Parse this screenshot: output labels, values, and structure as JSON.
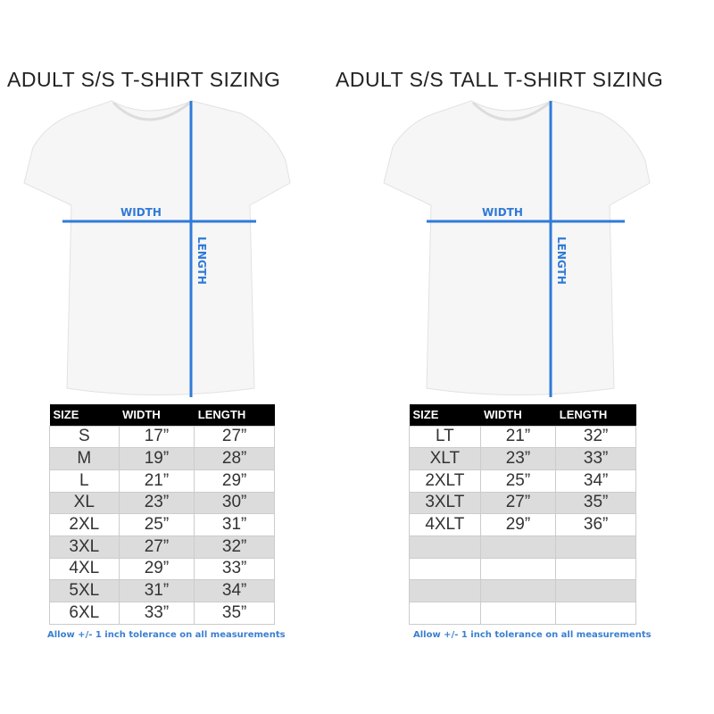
{
  "left": {
    "title": "ADULT S/S T-SHIRT SIZING",
    "width_label": "WIDTH",
    "length_label": "LENGTH",
    "headers": [
      "SIZE",
      "WIDTH",
      "LENGTH"
    ],
    "rows": [
      [
        "S",
        "17”",
        "27”"
      ],
      [
        "M",
        "19”",
        "28”"
      ],
      [
        "L",
        "21”",
        "29”"
      ],
      [
        "XL",
        "23”",
        "30”"
      ],
      [
        "2XL",
        "25”",
        "31”"
      ],
      [
        "3XL",
        "27”",
        "32”"
      ],
      [
        "4XL",
        "29”",
        "33”"
      ],
      [
        "5XL",
        "31”",
        "34”"
      ],
      [
        "6XL",
        "33”",
        "35”"
      ]
    ],
    "note": "Allow +/- 1 inch tolerance on all measurements"
  },
  "right": {
    "title": "ADULT S/S TALL T-SHIRT SIZING",
    "width_label": "WIDTH",
    "length_label": "LENGTH",
    "headers": [
      "SIZE",
      "WIDTH",
      "LENGTH"
    ],
    "rows": [
      [
        "LT",
        "21”",
        "32”"
      ],
      [
        "XLT",
        "23”",
        "33”"
      ],
      [
        "2XLT",
        "25”",
        "34”"
      ],
      [
        "3XLT",
        "27”",
        "35”"
      ],
      [
        "4XLT",
        "29”",
        "36”"
      ],
      [
        "",
        "",
        ""
      ],
      [
        "",
        "",
        ""
      ],
      [
        "",
        "",
        ""
      ],
      [
        "",
        "",
        ""
      ]
    ],
    "note": "Allow +/- 1 inch tolerance on all measurements"
  },
  "colors": {
    "measure_line": "#2f7ad8",
    "header_bg": "#000000",
    "stripe": "#dcdcdc",
    "note": "#3a7fd0"
  }
}
